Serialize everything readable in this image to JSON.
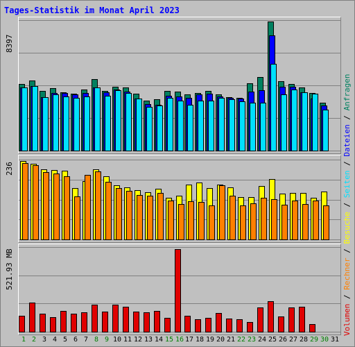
{
  "title": "Tages-Statistik im Monat April 2023",
  "y_max_labels": {
    "top": "8397",
    "middle": "236",
    "bottom": "521.93 MB"
  },
  "legend": {
    "items": [
      {
        "label": "Volumen",
        "color": "#e00000"
      },
      {
        "label": "Rechner",
        "color": "#ff8000"
      },
      {
        "label": "Besuche",
        "color": "#ffff00"
      },
      {
        "label": "Seiten",
        "color": "#00e0ff"
      },
      {
        "label": "Dateien",
        "color": "#0000ff"
      },
      {
        "label": "Anfragen",
        "color": "#008060"
      }
    ],
    "separator": " / "
  },
  "x_labels": [
    "1",
    "2",
    "3",
    "4",
    "5",
    "6",
    "7",
    "8",
    "9",
    "10",
    "11",
    "12",
    "13",
    "14",
    "15",
    "16",
    "17",
    "18",
    "19",
    "20",
    "21",
    "22",
    "23",
    "24",
    "25",
    "26",
    "27",
    "28",
    "29",
    "30",
    "31"
  ],
  "weekend_days": [
    1,
    2,
    8,
    9,
    15,
    16,
    22,
    23,
    29,
    30
  ],
  "colors": {
    "weekend_label": "#008000",
    "weekday_label": "#000000"
  },
  "chart_data": [
    {
      "type": "bar",
      "name": "Anfragen / Dateien / Seiten",
      "ylim": [
        0,
        8397
      ],
      "series": [
        {
          "name": "Anfragen",
          "color": "#008060",
          "values": [
            4300,
            4500,
            3850,
            4000,
            3750,
            3650,
            3950,
            4600,
            3850,
            4100,
            4050,
            3650,
            3200,
            3300,
            3850,
            3800,
            3600,
            3700,
            3850,
            3600,
            3450,
            3400,
            4350,
            4750,
            8300,
            4450,
            4300,
            4050,
            3700,
            3100,
            0
          ]
        },
        {
          "name": "Dateien",
          "color": "#0000ff",
          "values": [
            4050,
            4150,
            3450,
            3700,
            3700,
            3600,
            3700,
            4050,
            3750,
            3950,
            3800,
            3350,
            3000,
            2950,
            3550,
            3500,
            3400,
            3600,
            3650,
            3500,
            3400,
            3350,
            3800,
            3900,
            7400,
            4100,
            4100,
            3750,
            3350,
            2900,
            0
          ]
        },
        {
          "name": "Seiten",
          "color": "#00e0ff",
          "values": [
            4050,
            4150,
            3450,
            3600,
            3500,
            3400,
            3500,
            4050,
            3550,
            3900,
            3700,
            3350,
            2800,
            2900,
            3400,
            3200,
            2950,
            3200,
            3200,
            3400,
            3300,
            3150,
            3100,
            3100,
            5600,
            3600,
            3950,
            3750,
            3650,
            2650,
            0
          ]
        }
      ]
    },
    {
      "type": "bar",
      "name": "Besuche / Rechner",
      "ylim": [
        0,
        236
      ],
      "series": [
        {
          "name": "Besuche",
          "color": "#ffff00",
          "values": [
            232,
            224,
            207,
            206,
            204,
            152,
            173,
            208,
            186,
            161,
            153,
            145,
            139,
            149,
            124,
            130,
            163,
            169,
            151,
            162,
            154,
            126,
            126,
            158,
            178,
            136,
            137,
            138,
            124,
            142,
            0
          ]
        },
        {
          "name": "Rechner",
          "color": "#ff8000",
          "values": [
            225,
            219,
            199,
            195,
            187,
            128,
            190,
            201,
            171,
            152,
            144,
            131,
            130,
            137,
            115,
            105,
            112,
            111,
            101,
            160,
            130,
            101,
            106,
            123,
            118,
            102,
            115,
            104,
            115,
            100,
            0
          ]
        }
      ]
    },
    {
      "type": "bar",
      "name": "Volumen",
      "ylim": [
        0,
        521.93
      ],
      "ylabel": "MB",
      "series": [
        {
          "name": "Volumen",
          "color": "#e00000",
          "values": [
            100,
            180,
            110,
            90,
            130,
            110,
            120,
            165,
            125,
            165,
            155,
            125,
            120,
            130,
            85,
            510,
            100,
            75,
            85,
            115,
            80,
            75,
            60,
            150,
            190,
            95,
            150,
            155,
            45,
            0,
            0
          ]
        }
      ]
    }
  ]
}
